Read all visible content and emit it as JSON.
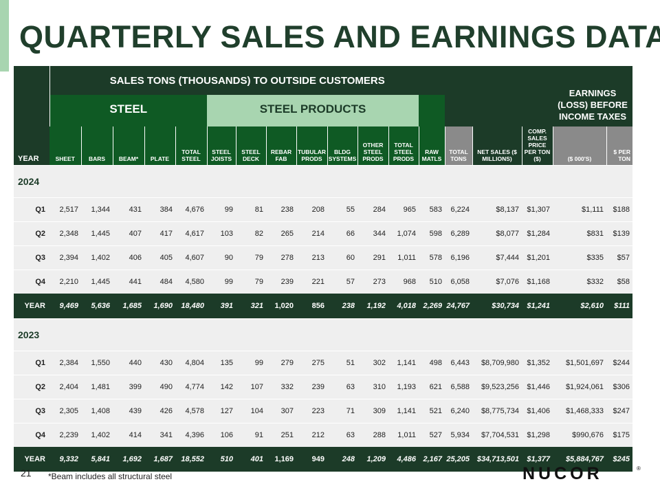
{
  "page": {
    "title": "QUARTERLY SALES AND EARNINGS DATA",
    "page_number": "21",
    "footnote": "*Beam includes all structural steel",
    "logo_text": "NUCOR",
    "logo_mark": "®"
  },
  "header": {
    "group_main": "SALES TONS (THOUSANDS) TO OUTSIDE CUSTOMERS",
    "group_steel": "STEEL",
    "group_products": "STEEL PRODUCTS",
    "earnings": "EARNINGS (LOSS) BEFORE INCOME TAXES",
    "columns": [
      "YEAR",
      "SHEET",
      "BARS",
      "BEAM*",
      "PLATE",
      "TOTAL STEEL",
      "STEEL JOISTS",
      "STEEL DECK",
      "REBAR FAB",
      "TUBULAR PRODS",
      "BLDG SYSTEMS",
      "OTHER STEEL PRODS",
      "TOTAL STEEL PRODS",
      "RAW MATLS",
      "TOTAL TONS",
      "NET SALES ($ MILLIONS)",
      "COMP. SALES PRICE PER TON ($)",
      "($ 000'S)",
      "$ PER TON"
    ]
  },
  "sections": [
    {
      "year": "2024",
      "rows": [
        {
          "label": "Q1",
          "cells": [
            "2,517",
            "1,344",
            "431",
            "384",
            "4,676",
            "99",
            "81",
            "238",
            "208",
            "55",
            "284",
            "965",
            "583",
            "6,224",
            "$8,137",
            "$1,307",
            "$1,111",
            "$188"
          ]
        },
        {
          "label": "Q2",
          "cells": [
            "2,348",
            "1,445",
            "407",
            "417",
            "4,617",
            "103",
            "82",
            "265",
            "214",
            "66",
            "344",
            "1,074",
            "598",
            "6,289",
            "$8,077",
            "$1,284",
            "$831",
            "$139"
          ]
        },
        {
          "label": "Q3",
          "cells": [
            "2,394",
            "1,402",
            "406",
            "405",
            "4,607",
            "90",
            "79",
            "278",
            "213",
            "60",
            "291",
            "1,011",
            "578",
            "6,196",
            "$7,444",
            "$1,201",
            "$335",
            "$57"
          ]
        },
        {
          "label": "Q4",
          "cells": [
            "2,210",
            "1,445",
            "441",
            "484",
            "4,580",
            "99",
            "79",
            "239",
            "221",
            "57",
            "273",
            "968",
            "510",
            "6,058",
            "$7,076",
            "$1,168",
            "$332",
            "$58"
          ]
        }
      ],
      "total": {
        "label": "YEAR",
        "cells": [
          "9,469",
          "5,636",
          "1,685",
          "1,690",
          "18,480",
          "391",
          "321",
          "1,020",
          "856",
          "238",
          "1,192",
          "4,018",
          "2,269",
          "24,767",
          "$30,734",
          "$1,241",
          "$2,610",
          "$111"
        ]
      }
    },
    {
      "year": "2023",
      "rows": [
        {
          "label": "Q1",
          "cells": [
            "2,384",
            "1,550",
            "440",
            "430",
            "4,804",
            "135",
            "99",
            "279",
            "275",
            "51",
            "302",
            "1,141",
            "498",
            "6,443",
            "$8,709,980",
            "$1,352",
            "$1,501,697",
            "$244"
          ]
        },
        {
          "label": "Q2",
          "cells": [
            "2,404",
            "1,481",
            "399",
            "490",
            "4,774",
            "142",
            "107",
            "332",
            "239",
            "63",
            "310",
            "1,193",
            "621",
            "6,588",
            "$9,523,256",
            "$1,446",
            "$1,924,061",
            "$306"
          ]
        },
        {
          "label": "Q3",
          "cells": [
            "2,305",
            "1,408",
            "439",
            "426",
            "4,578",
            "127",
            "104",
            "307",
            "223",
            "71",
            "309",
            "1,141",
            "521",
            "6,240",
            "$8,775,734",
            "$1,406",
            "$1,468,333",
            "$247"
          ]
        },
        {
          "label": "Q4",
          "cells": [
            "2,239",
            "1,402",
            "414",
            "341",
            "4,396",
            "106",
            "91",
            "251",
            "212",
            "63",
            "288",
            "1,011",
            "527",
            "5,934",
            "$7,704,531",
            "$1,298",
            "$990,676",
            "$175"
          ]
        }
      ],
      "total": {
        "label": "YEAR",
        "cells": [
          "9,332",
          "5,841",
          "1,692",
          "1,687",
          "18,552",
          "510",
          "401",
          "1,169",
          "949",
          "248",
          "1,209",
          "4,486",
          "2,167",
          "25,205",
          "$34,713,501",
          "$1,377",
          "$5,884,767",
          "$245"
        ]
      }
    }
  ]
}
